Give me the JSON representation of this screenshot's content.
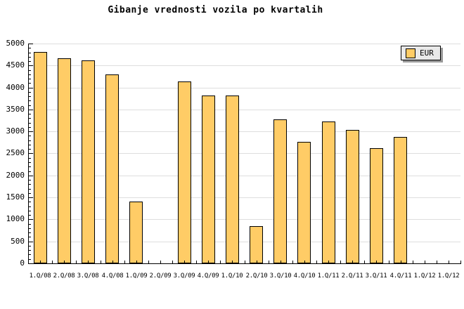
{
  "chart_data": {
    "type": "bar",
    "title": "Gibanje vrednosti vozila po kvartalih",
    "categories": [
      "1.Q/08",
      "2.Q/08",
      "3.Q/08",
      "4.Q/08",
      "1.Q/09",
      "2.Q/09",
      "3.Q/09",
      "4.Q/09",
      "1.Q/10",
      "2.Q/10",
      "3.Q/10",
      "4.Q/10",
      "1.Q/11",
      "2.Q/11",
      "3.Q/11",
      "4.Q/11",
      "1.Q/12",
      "1.Q/12"
    ],
    "series": [
      {
        "name": "EUR",
        "values": [
          4810,
          4670,
          4610,
          4290,
          1400,
          null,
          4140,
          3810,
          3810,
          850,
          3280,
          2760,
          3230,
          3030,
          2620,
          2870,
          null,
          null
        ]
      }
    ],
    "xlabel": "",
    "ylabel": "",
    "ylim": [
      0,
      5000
    ],
    "ytick_major": 500,
    "ytick_minor": 100,
    "grid": "horizontal-major",
    "legend": {
      "position": "top-right",
      "label": "EUR"
    },
    "colors": {
      "bar_fill": "#FFCC66",
      "bar_border": "#000000",
      "grid": "#DEDEDE",
      "axis": "#000000",
      "title": "#000000",
      "background": "#FFFFFF",
      "legend_bg": "#E9E9E9",
      "legend_shadow": "#999999"
    }
  }
}
